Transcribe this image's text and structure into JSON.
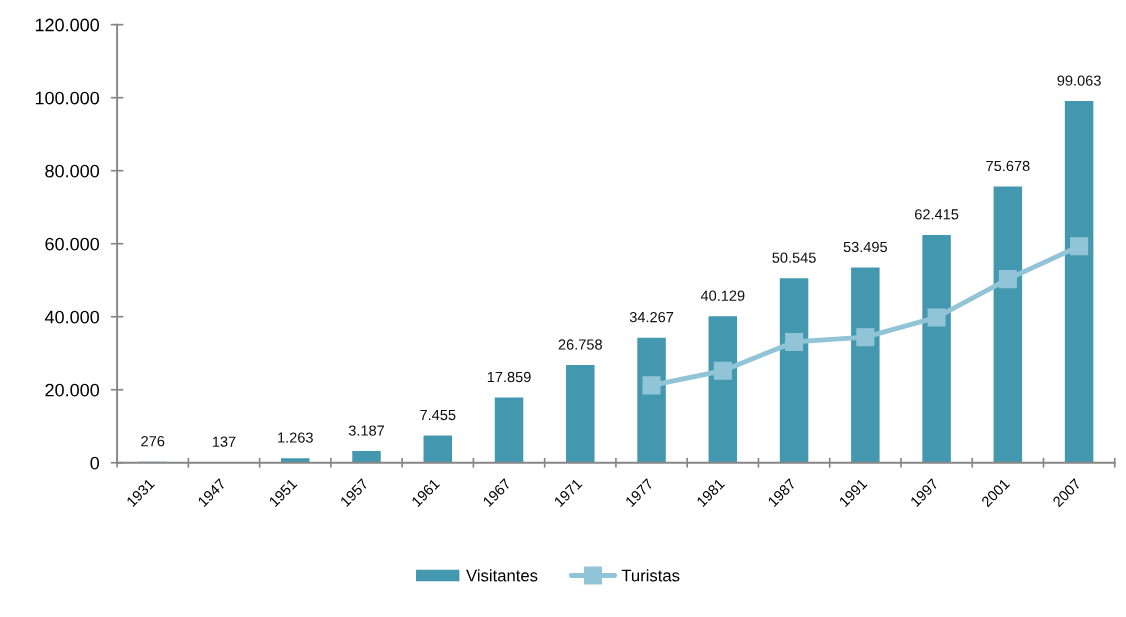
{
  "chart_data": {
    "type": "bar",
    "categories": [
      "1931",
      "1947",
      "1951",
      "1957",
      "1961",
      "1967",
      "1971",
      "1977",
      "1981",
      "1987",
      "1991",
      "1997",
      "2001",
      "2007"
    ],
    "series": [
      {
        "name": "Visitantes",
        "color": "#4398b0",
        "values": [
          276,
          137,
          1263,
          3187,
          7455,
          17859,
          26758,
          34267,
          40129,
          50545,
          53495,
          62415,
          75678,
          99063
        ],
        "value_labels": [
          "276",
          "137",
          "1.263",
          "3.187",
          "7.455",
          "17.859",
          "26.758",
          "34.267",
          "40.129",
          "50.545",
          "53.495",
          "62.415",
          "75.678",
          "99.063"
        ]
      },
      {
        "name": "Turistas",
        "type": "line",
        "color": "#92c4d8",
        "marker": "square",
        "line_style": "solid",
        "values": [
          null,
          null,
          null,
          null,
          null,
          null,
          null,
          21200,
          25200,
          33100,
          34400,
          39800,
          50300,
          59300
        ]
      }
    ],
    "ylim": [
      0,
      120000
    ],
    "yticks": [
      0,
      {
        "value": 20000,
        "label": "20.000"
      },
      {
        "value": 40000,
        "label": "40.000"
      },
      {
        "value": 60000,
        "label": "60.000"
      },
      {
        "value": 80000,
        "label": "80.000"
      },
      {
        "value": 100000,
        "label": "100.000"
      },
      {
        "value": 120000,
        "label": "120.000"
      }
    ],
    "grid": false,
    "legend": "bottom"
  }
}
